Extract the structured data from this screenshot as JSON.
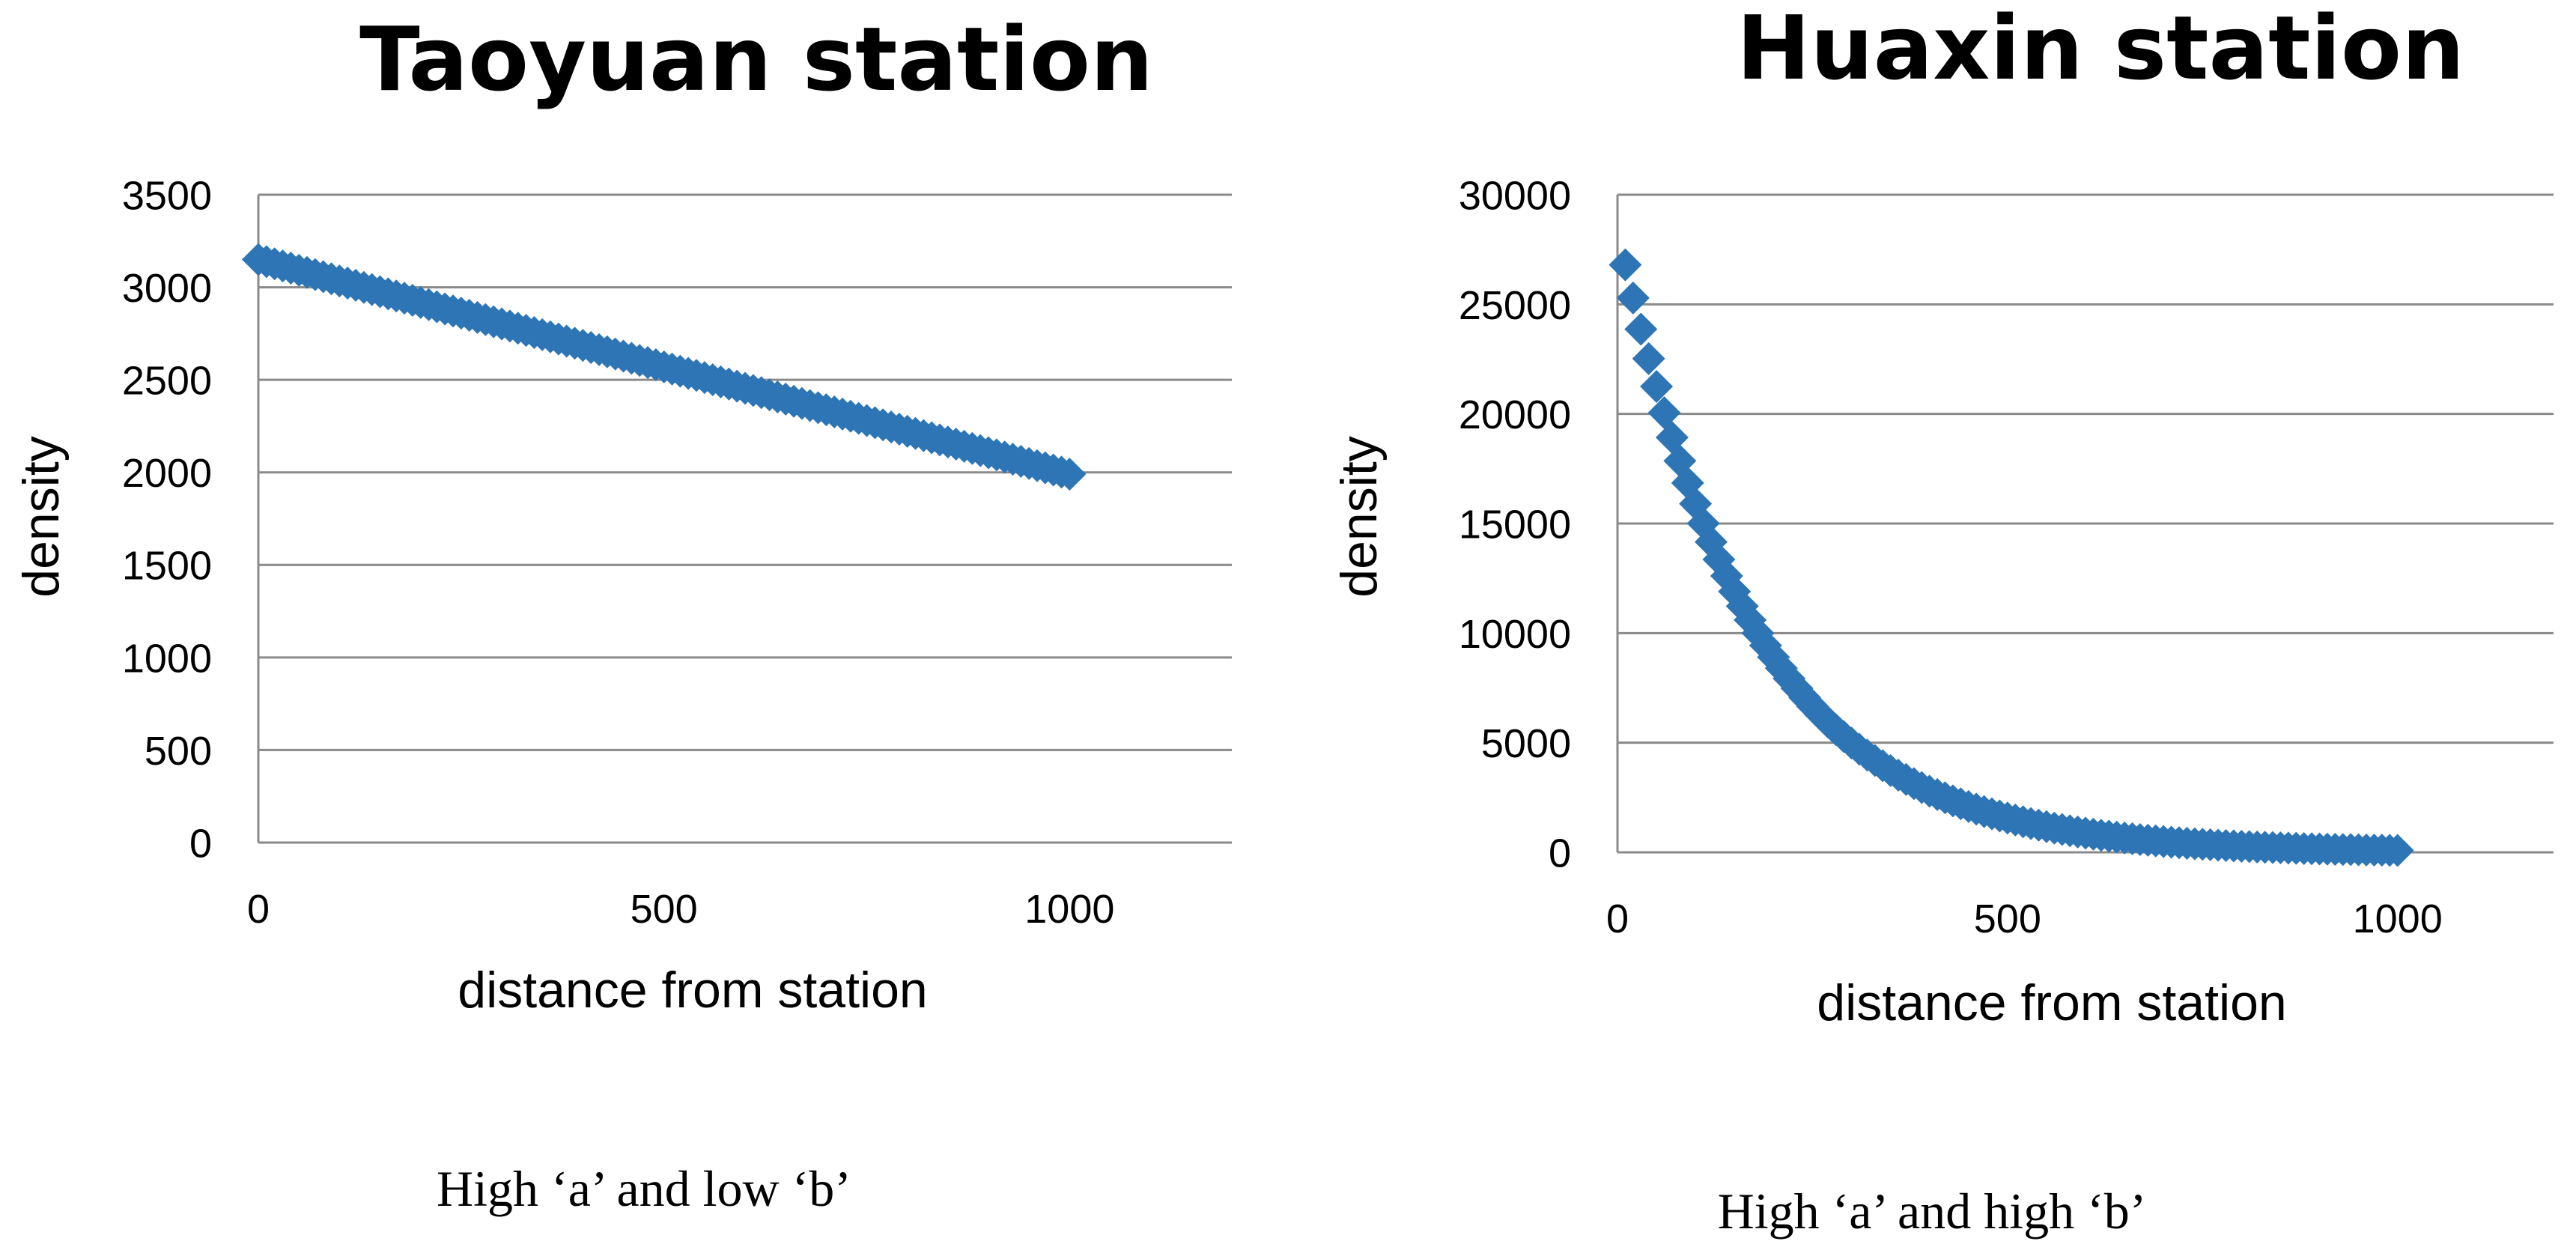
{
  "chart_data": [
    {
      "type": "scatter",
      "title": "Taoyuan station",
      "xlabel": "distance from station",
      "ylabel": "density",
      "xlim": [
        0,
        1200
      ],
      "ylim": [
        0,
        3500
      ],
      "x_ticks": [
        0,
        500,
        1000
      ],
      "y_ticks": [
        0,
        500,
        1000,
        1500,
        2000,
        2500,
        3000,
        3500
      ],
      "grid": true,
      "marker": "diamond",
      "color": "#2E75B6",
      "series": [
        {
          "points": {
            "start_x": 0,
            "end_x": 1000,
            "step": 10,
            "model": "linear",
            "y_at_start": 3150,
            "y_at_end": 1990
          }
        }
      ],
      "caption": "High ‘a’ and low ‘b’"
    },
    {
      "type": "scatter",
      "title": "Huaxin station",
      "xlabel": "distance from station",
      "ylabel": "density",
      "xlim": [
        0,
        1200
      ],
      "ylim": [
        0,
        30000
      ],
      "x_ticks": [
        0,
        500,
        1000
      ],
      "y_ticks": [
        0,
        5000,
        10000,
        15000,
        20000,
        25000,
        30000
      ],
      "grid": true,
      "marker": "diamond",
      "color": "#2E75B6",
      "series": [
        {
          "points": {
            "start_x": 10,
            "end_x": 1000,
            "step": 10,
            "model": "exp_decay",
            "y_at_start": 26800,
            "decay_per_unit": 0.0058
          }
        }
      ],
      "caption": "High ‘a’ and high ‘b’"
    }
  ]
}
